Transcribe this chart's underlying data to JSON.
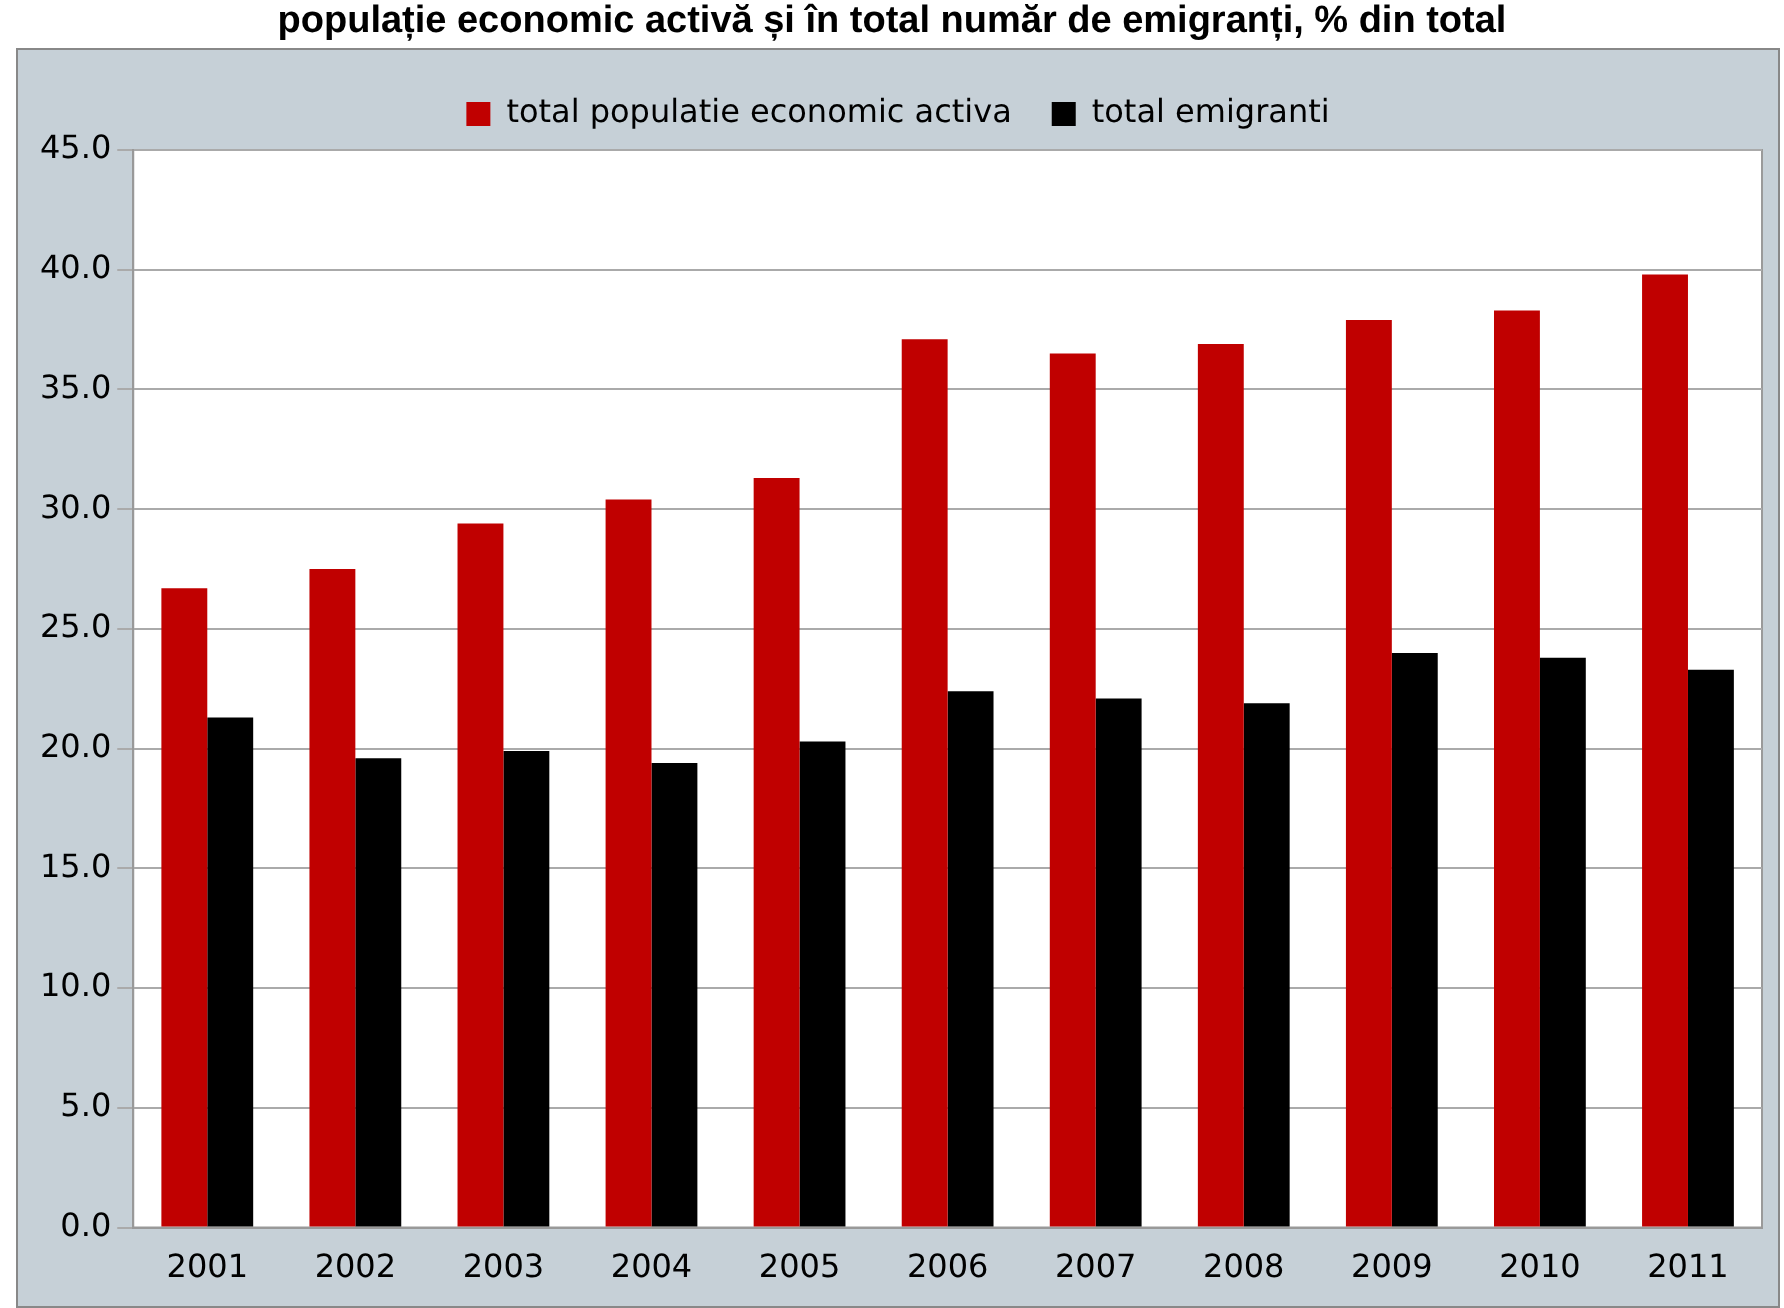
{
  "chart_data": {
    "type": "bar",
    "title": "populație economic activă și în total număr de emigranți, % din total",
    "categories": [
      "2001",
      "2002",
      "2003",
      "2004",
      "2005",
      "2006",
      "2007",
      "2008",
      "2009",
      "2010",
      "2011"
    ],
    "series": [
      {
        "name": "total populatie economic activa",
        "color": "#c00000",
        "values": [
          26.7,
          27.5,
          29.4,
          30.4,
          31.3,
          37.1,
          36.5,
          36.9,
          37.9,
          38.3,
          39.8
        ]
      },
      {
        "name": "total emigranti",
        "color": "#000000",
        "values": [
          21.3,
          19.6,
          19.9,
          19.4,
          20.3,
          22.4,
          22.1,
          21.9,
          24.0,
          23.8,
          23.3
        ]
      }
    ],
    "ylim": [
      0,
      45
    ],
    "yticks": [
      {
        "value": 0,
        "label": "0.0"
      },
      {
        "value": 5,
        "label": "5.0"
      },
      {
        "value": 10,
        "label": "10.0"
      },
      {
        "value": 15,
        "label": "15.0"
      },
      {
        "value": 20,
        "label": "20.0"
      },
      {
        "value": 25,
        "label": "25.0"
      },
      {
        "value": 30,
        "label": "30.0"
      },
      {
        "value": 35,
        "label": "35.0"
      },
      {
        "value": 40,
        "label": "40.0"
      },
      {
        "value": 45,
        "label": "45.0"
      }
    ],
    "grid": "y",
    "legend": "top"
  }
}
